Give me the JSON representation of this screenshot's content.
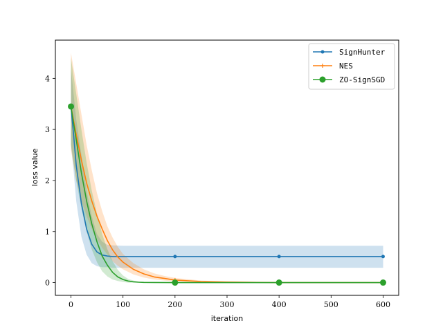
{
  "chart_data": {
    "type": "line",
    "title": "",
    "xlabel": "iteration",
    "ylabel": "loss value",
    "xlim": [
      -30,
      630
    ],
    "ylim": [
      -0.25,
      4.75
    ],
    "xticks": [
      0,
      100,
      200,
      300,
      400,
      500,
      600
    ],
    "yticks": [
      0,
      1,
      2,
      3,
      4
    ],
    "xtick_labels": [
      "0",
      "100",
      "200",
      "300",
      "400",
      "500",
      "600"
    ],
    "ytick_labels": [
      "0",
      "1",
      "2",
      "3",
      "4"
    ],
    "grid": false,
    "legend_position": "top-right",
    "series": [
      {
        "name": "SignHunter",
        "color": "#1f77b4",
        "marker": "dot",
        "x": [
          0,
          5,
          10,
          20,
          30,
          40,
          50,
          60,
          70,
          80,
          100,
          150,
          200,
          300,
          400,
          500,
          600
        ],
        "y": [
          3.45,
          2.9,
          2.3,
          1.55,
          1.05,
          0.75,
          0.6,
          0.54,
          0.52,
          0.51,
          0.51,
          0.51,
          0.51,
          0.51,
          0.51,
          0.51,
          0.51
        ],
        "band_upper": [
          4.2,
          3.7,
          3.2,
          2.5,
          1.8,
          1.3,
          0.95,
          0.8,
          0.74,
          0.73,
          0.72,
          0.72,
          0.72,
          0.72,
          0.72,
          0.72,
          0.72
        ],
        "band_lower": [
          2.7,
          2.2,
          1.6,
          0.9,
          0.55,
          0.38,
          0.32,
          0.3,
          0.3,
          0.29,
          0.29,
          0.29,
          0.29,
          0.29,
          0.29,
          0.29,
          0.29
        ],
        "marker_x": [
          200,
          400,
          600
        ],
        "marker_y": [
          0.51,
          0.51,
          0.51
        ]
      },
      {
        "name": "NES",
        "color": "#ff7f0e",
        "marker": "plus",
        "x": [
          0,
          10,
          20,
          30,
          40,
          50,
          60,
          70,
          80,
          90,
          100,
          120,
          140,
          160,
          180,
          200,
          250,
          300,
          400,
          500,
          600
        ],
        "y": [
          3.45,
          2.9,
          2.4,
          1.95,
          1.6,
          1.3,
          1.05,
          0.82,
          0.64,
          0.5,
          0.4,
          0.26,
          0.17,
          0.11,
          0.08,
          0.05,
          0.02,
          0.01,
          0.0,
          0.0,
          0.0
        ],
        "band_upper": [
          4.5,
          3.9,
          3.3,
          2.7,
          2.2,
          1.75,
          1.4,
          1.1,
          0.88,
          0.7,
          0.56,
          0.38,
          0.26,
          0.18,
          0.13,
          0.09,
          0.04,
          0.02,
          0.01,
          0.01,
          0.01
        ],
        "band_lower": [
          2.6,
          2.0,
          1.6,
          1.3,
          1.05,
          0.85,
          0.68,
          0.55,
          0.42,
          0.33,
          0.26,
          0.16,
          0.1,
          0.06,
          0.04,
          0.02,
          0.01,
          0.0,
          0.0,
          0.0,
          0.0
        ],
        "marker_x": [
          200,
          400,
          600
        ],
        "marker_y": [
          0.05,
          0.0,
          0.0
        ]
      },
      {
        "name": "ZO-SignSGD",
        "color": "#2ca02c",
        "marker": "circle",
        "x": [
          0,
          10,
          20,
          30,
          40,
          50,
          60,
          70,
          80,
          90,
          100,
          110,
          120,
          130,
          140,
          160,
          200,
          300,
          400,
          500,
          600
        ],
        "y": [
          3.45,
          2.8,
          2.15,
          1.6,
          1.15,
          0.8,
          0.52,
          0.34,
          0.2,
          0.11,
          0.06,
          0.03,
          0.015,
          0.008,
          0.004,
          0.002,
          0.0,
          0.0,
          0.0,
          0.0,
          0.0
        ],
        "band_upper": [
          4.4,
          3.7,
          3.0,
          2.35,
          1.8,
          1.35,
          0.95,
          0.65,
          0.42,
          0.25,
          0.14,
          0.07,
          0.04,
          0.02,
          0.01,
          0.005,
          0.0,
          0.0,
          0.0,
          0.0,
          0.0
        ],
        "band_lower": [
          2.7,
          2.0,
          1.45,
          1.0,
          0.65,
          0.4,
          0.22,
          0.12,
          0.06,
          0.03,
          0.01,
          0.0,
          0.0,
          0.0,
          0.0,
          0.0,
          0.0,
          0.0,
          0.0,
          0.0,
          0.0
        ],
        "marker_x": [
          0,
          200,
          400,
          600
        ],
        "marker_y": [
          3.45,
          0.0,
          0.0,
          0.0
        ]
      }
    ]
  }
}
